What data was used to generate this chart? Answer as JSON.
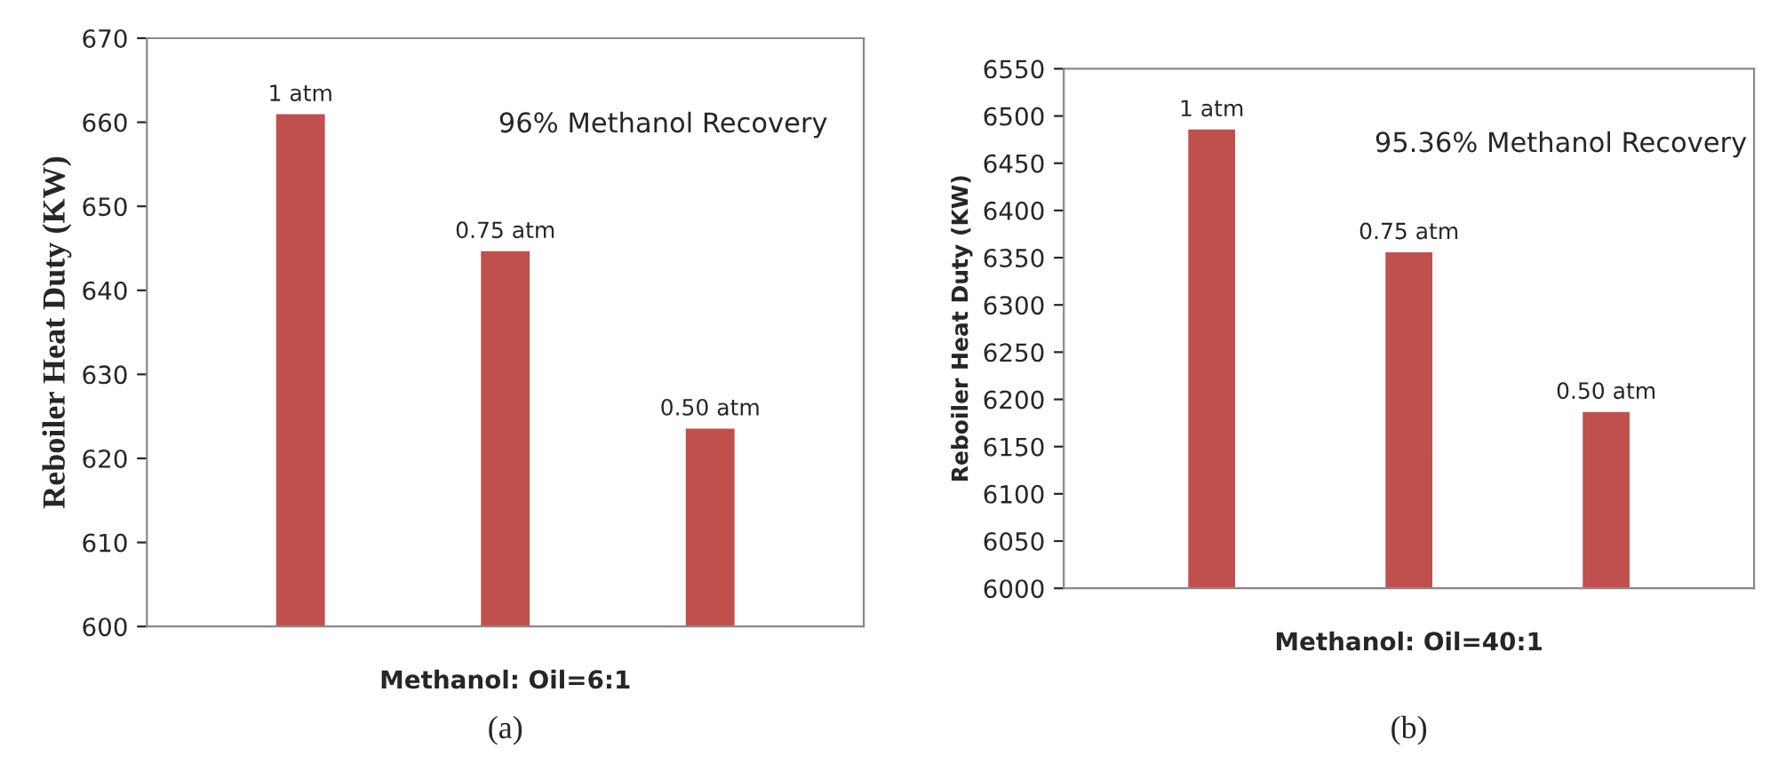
{
  "chart_data": [
    {
      "type": "bar",
      "categories": [
        null,
        null,
        null
      ],
      "values": [
        661.1,
        644.8,
        623.7
      ],
      "color": "#c0504d",
      "xlabel": "Methanol: Oil=6:1",
      "ylabel": "Reboiler Heat Duty (KW)",
      "ylim": [
        600,
        670
      ],
      "yticks": [
        600,
        610,
        620,
        630,
        640,
        650,
        660,
        670
      ],
      "grid": false,
      "annotations": [
        {
          "text": "1 atm",
          "y": 661.1
        },
        {
          "text": "0.75 atm",
          "y": 644.8
        },
        {
          "text": "0.50 atm",
          "y": 623.7
        },
        "96% Methanol Recovery",
        "(a)"
      ]
    },
    {
      "type": "bar",
      "categories": [
        null,
        null,
        null
      ],
      "values": [
        6487,
        6357,
        6188
      ],
      "color": "#c0504d",
      "xlabel": "Methanol: Oil=40:1",
      "ylabel": "Reboiler Heat Duty (KW)",
      "ylim": [
        6000,
        6550
      ],
      "yticks": [
        6000,
        6050,
        6100,
        6150,
        6200,
        6250,
        6300,
        6350,
        6400,
        6450,
        6500,
        6550
      ],
      "grid": false,
      "annotations": [
        {
          "text": "1 atm",
          "y": 6487
        },
        {
          "text": "0.75 atm",
          "y": 6357
        },
        {
          "text": "0.50 atm",
          "y": 6188
        },
        "95.36% Methanol Recovery",
        "(b)"
      ]
    }
  ]
}
